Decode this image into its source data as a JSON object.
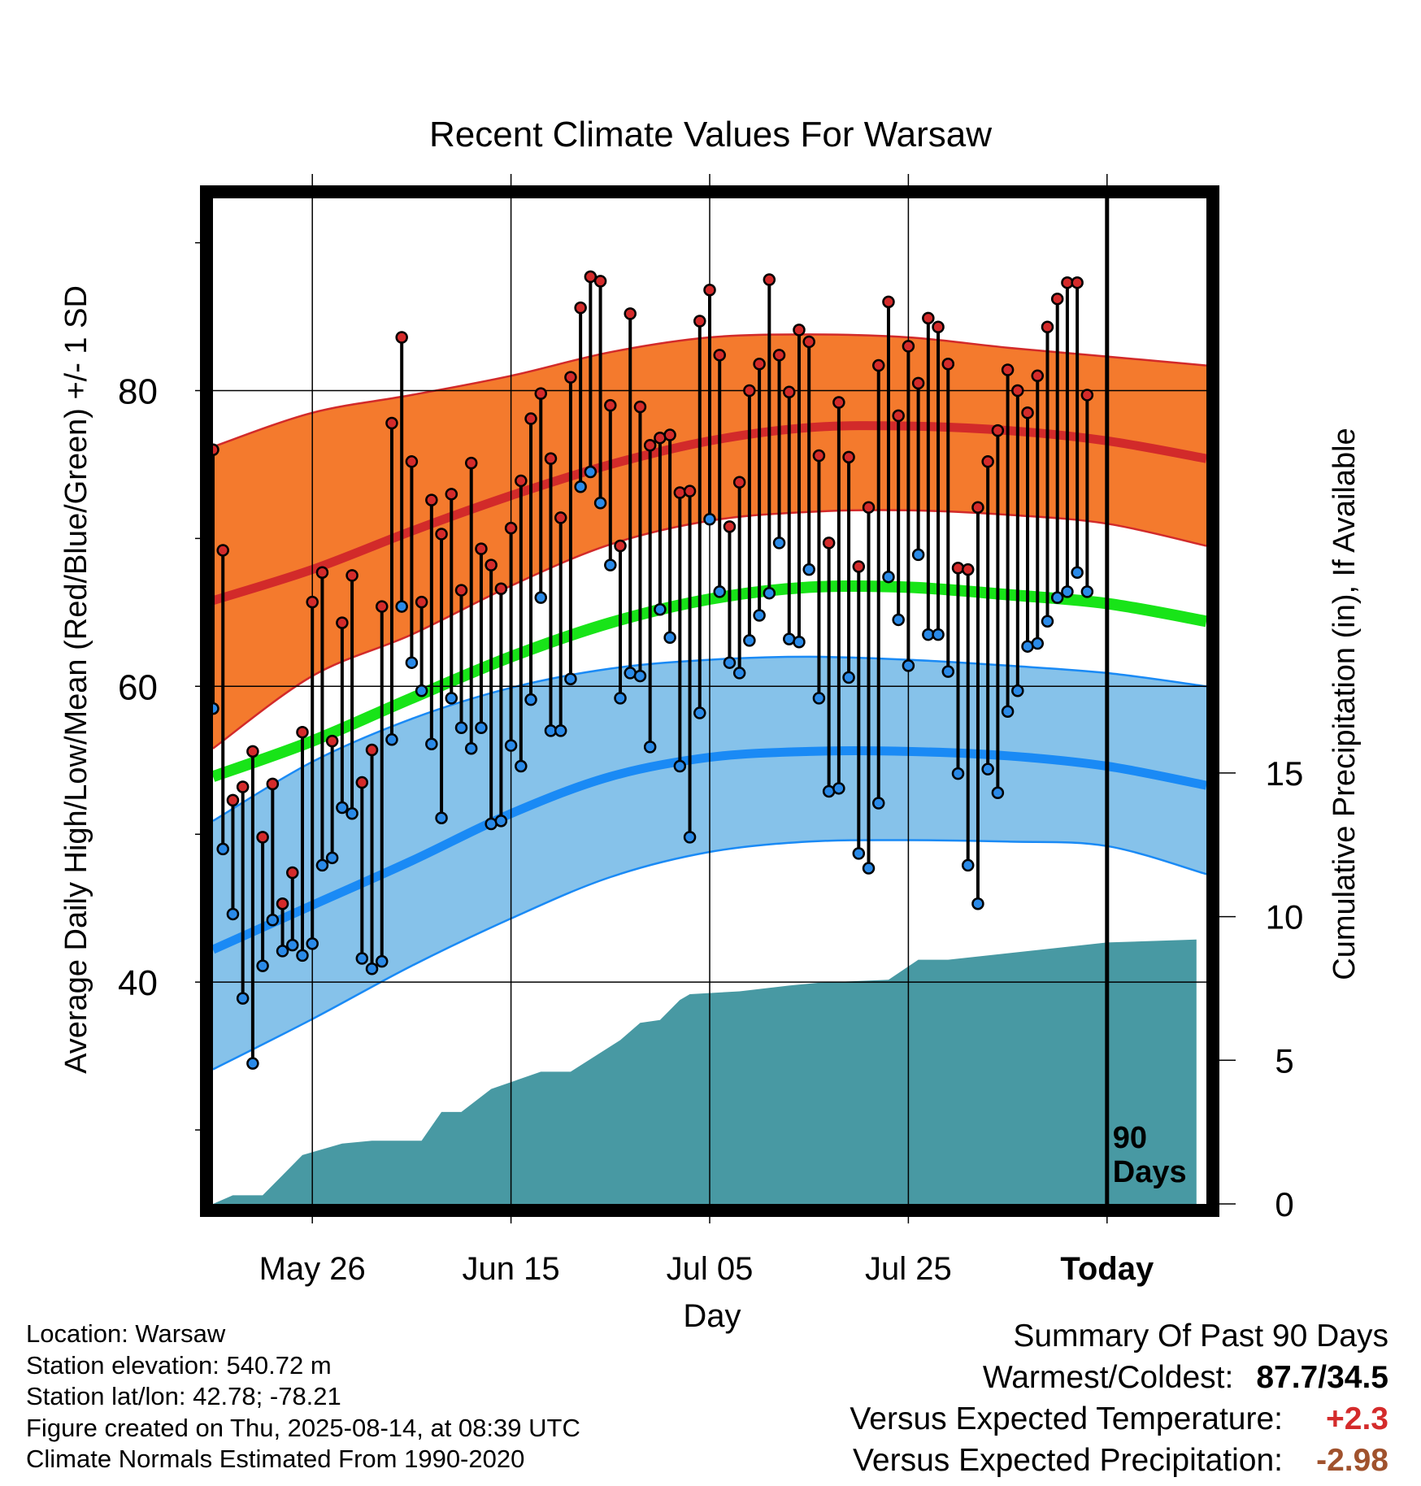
{
  "chart_data": {
    "type": "line",
    "title": "Recent Climate Values For Warsaw",
    "xlabel": "Day",
    "ylabel": "Average Daily High/Low/Mean (Red/Blue/Green) +/- 1 SD",
    "y2label": "Cumulative Precipitation (in), If Available",
    "x_range": [
      "2025-05-16",
      "2025-08-24"
    ],
    "ylim": [
      25,
      93
    ],
    "y2lim": [
      0,
      35
    ],
    "y_ticks": [
      "40",
      "60",
      "80"
    ],
    "y2_ticks": [
      "0",
      "5",
      "10",
      "15"
    ],
    "x_ticks": [
      {
        "label": "May 26",
        "date": "2025-05-26"
      },
      {
        "label": "Jun 15",
        "date": "2025-06-15"
      },
      {
        "label": "Jul 05",
        "date": "2025-07-05"
      },
      {
        "label": "Jul 25",
        "date": "2025-07-25"
      },
      {
        "label": "Today",
        "date": "2025-08-14"
      }
    ],
    "today_marker": {
      "label_line1": "90",
      "label_line2": "Days",
      "date": "2025-08-14"
    },
    "colors": {
      "high_band": "#f47a2d",
      "high_mean_line": "#d22a2a",
      "low_band": "#86c2ea",
      "low_mean_line": "#1a8af5",
      "mean_line": "#18e418",
      "precipitation": "#4899a3",
      "high_point": "#d42b2b",
      "low_point": "#2a8ae8"
    },
    "normals": {
      "dates": [
        "2025-05-16",
        "2025-05-26",
        "2025-06-05",
        "2025-06-15",
        "2025-06-25",
        "2025-07-05",
        "2025-07-15",
        "2025-07-25",
        "2025-08-04",
        "2025-08-14",
        "2025-08-24"
      ],
      "high_mean": [
        65.8,
        67.9,
        70.5,
        72.9,
        75.0,
        76.6,
        77.5,
        77.6,
        77.3,
        76.6,
        75.4
      ],
      "high_upper": [
        76.2,
        78.5,
        79.7,
        81.0,
        82.6,
        83.6,
        83.8,
        83.6,
        82.9,
        82.3,
        81.7
      ],
      "high_lower": [
        55.8,
        60.7,
        63.5,
        66.8,
        69.6,
        71.2,
        71.8,
        71.9,
        71.6,
        71.0,
        69.5
      ],
      "low_mean": [
        42.2,
        45.2,
        48.2,
        51.4,
        53.9,
        55.2,
        55.6,
        55.6,
        55.3,
        54.6,
        53.3
      ],
      "low_upper": [
        50.9,
        54.9,
        57.8,
        59.9,
        61.2,
        61.8,
        62.0,
        61.8,
        61.4,
        60.9,
        60.0
      ],
      "low_lower": [
        34.1,
        37.5,
        41.1,
        44.3,
        47.1,
        48.8,
        49.5,
        49.6,
        49.5,
        49.2,
        47.3
      ],
      "mean": [
        53.9,
        56.3,
        59.2,
        62.0,
        64.3,
        65.9,
        66.7,
        66.7,
        66.2,
        65.6,
        64.4
      ]
    },
    "observations": {
      "start_date": "2025-05-16",
      "high": [
        76,
        69.2,
        52.3,
        53.2,
        55.6,
        49.8,
        53.4,
        45.3,
        47.4,
        56.9,
        65.7,
        67.7,
        56.3,
        64.3,
        67.5,
        53.5,
        55.7,
        65.4,
        77.8,
        83.6,
        75.2,
        65.7,
        72.6,
        70.3,
        73.0,
        66.5,
        75.1,
        69.3,
        68.2,
        66.6,
        70.7,
        73.9,
        78.1,
        79.8,
        75.4,
        71.4,
        80.9,
        85.6,
        87.7,
        87.4,
        79.0,
        69.5,
        85.2,
        78.9,
        76.3,
        76.8,
        77.0,
        73.1,
        73.2,
        84.7,
        86.8,
        82.4,
        70.8,
        73.8,
        80.0,
        81.8,
        87.5,
        82.4,
        79.9,
        84.1,
        83.3,
        75.6,
        69.7,
        79.2,
        75.5,
        68.1,
        72.1,
        81.7,
        86.0,
        78.3,
        83.0,
        80.5,
        84.9,
        84.3,
        81.8,
        68.0,
        67.9,
        72.1,
        75.2,
        77.3,
        81.4,
        80.0,
        78.5,
        81.0,
        84.3,
        86.2,
        87.3,
        87.3,
        79.7
      ],
      "low": [
        58.5,
        49.0,
        44.6,
        38.9,
        34.5,
        41.1,
        44.2,
        42.1,
        42.5,
        41.8,
        42.6,
        47.9,
        48.4,
        51.8,
        51.4,
        41.6,
        40.9,
        41.4,
        56.4,
        65.4,
        61.6,
        59.7,
        56.1,
        51.1,
        59.2,
        57.2,
        55.8,
        57.2,
        50.7,
        50.9,
        56.0,
        54.6,
        59.1,
        66.0,
        57.0,
        57.0,
        60.5,
        73.5,
        74.5,
        72.4,
        68.2,
        59.2,
        60.9,
        60.7,
        55.9,
        65.2,
        63.3,
        54.6,
        49.8,
        58.2,
        71.3,
        66.4,
        61.6,
        60.9,
        63.1,
        64.8,
        66.3,
        69.7,
        63.2,
        63.0,
        67.9,
        59.2,
        52.9,
        53.1,
        60.6,
        48.7,
        47.7,
        52.1,
        67.4,
        64.5,
        61.4,
        68.9,
        63.5,
        63.5,
        61.0,
        54.1,
        47.9,
        45.3,
        54.4,
        52.8,
        58.3,
        59.7,
        62.7,
        62.9,
        64.4,
        66.0,
        66.4,
        67.7,
        66.4
      ]
    },
    "cumulative_precipitation": {
      "dates": [
        "2025-05-16",
        "2025-05-18",
        "2025-05-21",
        "2025-05-23",
        "2025-05-25",
        "2025-05-29",
        "2025-06-01",
        "2025-06-06",
        "2025-06-08",
        "2025-06-10",
        "2025-06-13",
        "2025-06-18",
        "2025-06-21",
        "2025-06-26",
        "2025-06-28",
        "2025-06-30",
        "2025-07-02",
        "2025-07-03",
        "2025-07-08",
        "2025-07-13",
        "2025-07-16",
        "2025-07-23",
        "2025-07-26",
        "2025-07-29",
        "2025-08-14",
        "2025-08-23"
      ],
      "values": [
        0.0,
        0.3,
        0.3,
        1.0,
        1.7,
        2.1,
        2.2,
        2.2,
        3.2,
        3.2,
        4.0,
        4.6,
        4.6,
        5.7,
        6.3,
        6.4,
        7.1,
        7.3,
        7.4,
        7.6,
        7.7,
        7.8,
        8.5,
        8.5,
        9.1,
        9.2
      ]
    }
  },
  "footer": {
    "location": "Location: Warsaw",
    "elevation": "Station elevation: 540.72 m",
    "latlon": "Station lat/lon: 42.78; -78.21",
    "created": "Figure created on Thu, 2025-08-14, at 08:39 UTC",
    "normals": "Climate Normals Estimated From 1990-2020"
  },
  "summary": {
    "heading": "Summary Of Past 90 Days",
    "warm_cold_label": "Warmest/Coldest:",
    "warm_cold_value": "87.7/34.5",
    "temp_label": "Versus Expected Temperature:",
    "temp_value": "+2.3",
    "temp_color": "#d42b2b",
    "precip_label": "Versus Expected Precipitation:",
    "precip_value": "-2.98",
    "precip_color": "#a0522d"
  }
}
